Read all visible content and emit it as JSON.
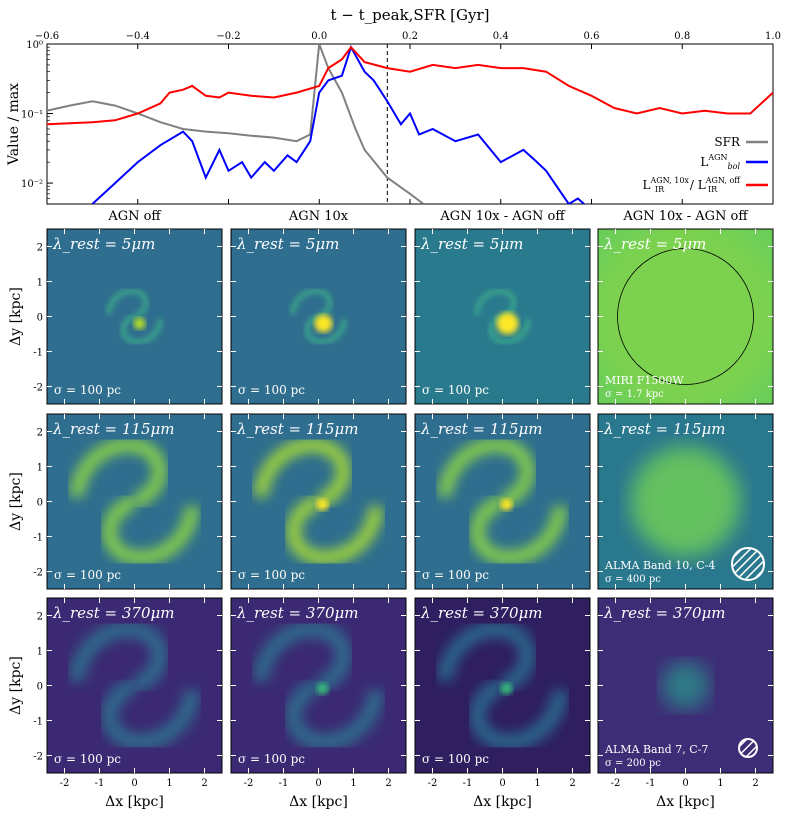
{
  "chart_data": [
    {
      "type": "line",
      "title": "",
      "xlabel": "t − t_peak,SFR [Gyr]",
      "ylabel": "Value / max",
      "xlim": [
        -0.6,
        1.0
      ],
      "ylim": [
        0.005,
        1.0
      ],
      "yscale": "log",
      "x_axis_position": "top",
      "x_ticks": [
        "−0.6",
        "−0.4",
        "−0.2",
        "0.0",
        "0.2",
        "0.4",
        "0.6",
        "0.8",
        "1.0"
      ],
      "y_ticks": [
        "10⁰",
        "10⁻¹",
        "10⁻²"
      ],
      "vline_x": 0.15,
      "legend_position": "right",
      "series": [
        {
          "name": "SFR",
          "color": "#808080",
          "x": [
            -0.6,
            -0.55,
            -0.5,
            -0.45,
            -0.4,
            -0.35,
            -0.3,
            -0.25,
            -0.2,
            -0.15,
            -0.1,
            -0.05,
            -0.02,
            0.0,
            0.02,
            0.05,
            0.08,
            0.1,
            0.15,
            0.2,
            0.23
          ],
          "y": [
            0.11,
            0.13,
            0.15,
            0.13,
            0.1,
            0.075,
            0.06,
            0.055,
            0.052,
            0.048,
            0.045,
            0.04,
            0.05,
            1.0,
            0.45,
            0.2,
            0.06,
            0.03,
            0.012,
            0.007,
            0.005
          ]
        },
        {
          "name": "L_bol^AGN",
          "color": "#0000ff",
          "x": [
            -0.5,
            -0.45,
            -0.4,
            -0.35,
            -0.3,
            -0.28,
            -0.25,
            -0.22,
            -0.2,
            -0.17,
            -0.15,
            -0.12,
            -0.1,
            -0.07,
            -0.05,
            -0.02,
            0.0,
            0.02,
            0.05,
            0.07,
            0.1,
            0.12,
            0.15,
            0.18,
            0.2,
            0.22,
            0.25,
            0.3,
            0.35,
            0.4,
            0.45,
            0.48,
            0.5,
            0.55,
            0.57,
            0.6
          ],
          "y": [
            0.005,
            0.01,
            0.02,
            0.035,
            0.055,
            0.04,
            0.012,
            0.03,
            0.015,
            0.02,
            0.012,
            0.02,
            0.015,
            0.025,
            0.02,
            0.04,
            0.2,
            0.3,
            0.35,
            0.9,
            0.4,
            0.3,
            0.15,
            0.07,
            0.1,
            0.05,
            0.06,
            0.04,
            0.05,
            0.02,
            0.03,
            0.02,
            0.015,
            0.005,
            0.006,
            0.004
          ]
        },
        {
          "name": "L_IR^AGN,10x / L_IR^AGN,off",
          "color": "#ff0000",
          "x": [
            -0.6,
            -0.5,
            -0.45,
            -0.4,
            -0.35,
            -0.33,
            -0.3,
            -0.28,
            -0.25,
            -0.22,
            -0.2,
            -0.15,
            -0.1,
            -0.05,
            0.0,
            0.02,
            0.05,
            0.07,
            0.1,
            0.15,
            0.2,
            0.25,
            0.3,
            0.35,
            0.4,
            0.45,
            0.5,
            0.55,
            0.6,
            0.65,
            0.7,
            0.75,
            0.8,
            0.85,
            0.9,
            0.95,
            1.0
          ],
          "y": [
            0.07,
            0.075,
            0.08,
            0.1,
            0.14,
            0.2,
            0.22,
            0.25,
            0.18,
            0.17,
            0.2,
            0.18,
            0.17,
            0.2,
            0.25,
            0.45,
            0.6,
            0.9,
            0.55,
            0.45,
            0.4,
            0.5,
            0.45,
            0.5,
            0.45,
            0.45,
            0.4,
            0.25,
            0.18,
            0.12,
            0.1,
            0.12,
            0.1,
            0.11,
            0.1,
            0.1,
            0.2
          ]
        }
      ]
    },
    {
      "type": "heatmap",
      "description": "4x4-style image grid of simulated galaxy emission maps",
      "column_titles": [
        "AGN off",
        "AGN 10x",
        "AGN 10x - AGN off",
        "AGN 10x - AGN off"
      ],
      "xlabel": "Δx [kpc]",
      "ylabel": "Δy [kpc]",
      "x_ticks": [
        "-2",
        "-1",
        "0",
        "1",
        "2"
      ],
      "y_ticks": [
        "2",
        "1",
        "0",
        "-1",
        "-2"
      ],
      "rows": [
        {
          "wavelength_label": "λ_rest = 5μm",
          "sigma_labels": [
            "σ = 100 pc",
            "σ = 100 pc",
            "σ = 100 pc",
            "σ = 1.7 kpc"
          ],
          "instrument_label": "MIRI F1500W",
          "background_color": "#2e6f8e"
        },
        {
          "wavelength_label": "λ_rest = 115μm",
          "sigma_labels": [
            "σ = 100 pc",
            "σ = 100 pc",
            "σ = 100 pc",
            "σ = 400 pc"
          ],
          "instrument_label": "ALMA Band 10, C-4",
          "background_color": "#2f6e8e"
        },
        {
          "wavelength_label": "λ_rest = 370μm",
          "sigma_labels": [
            "σ = 100 pc",
            "σ = 100 pc",
            "σ = 100 pc",
            "σ = 200 pc"
          ],
          "instrument_label": "ALMA Band 7, C-7",
          "background_color": "#3b2a73"
        }
      ]
    }
  ]
}
